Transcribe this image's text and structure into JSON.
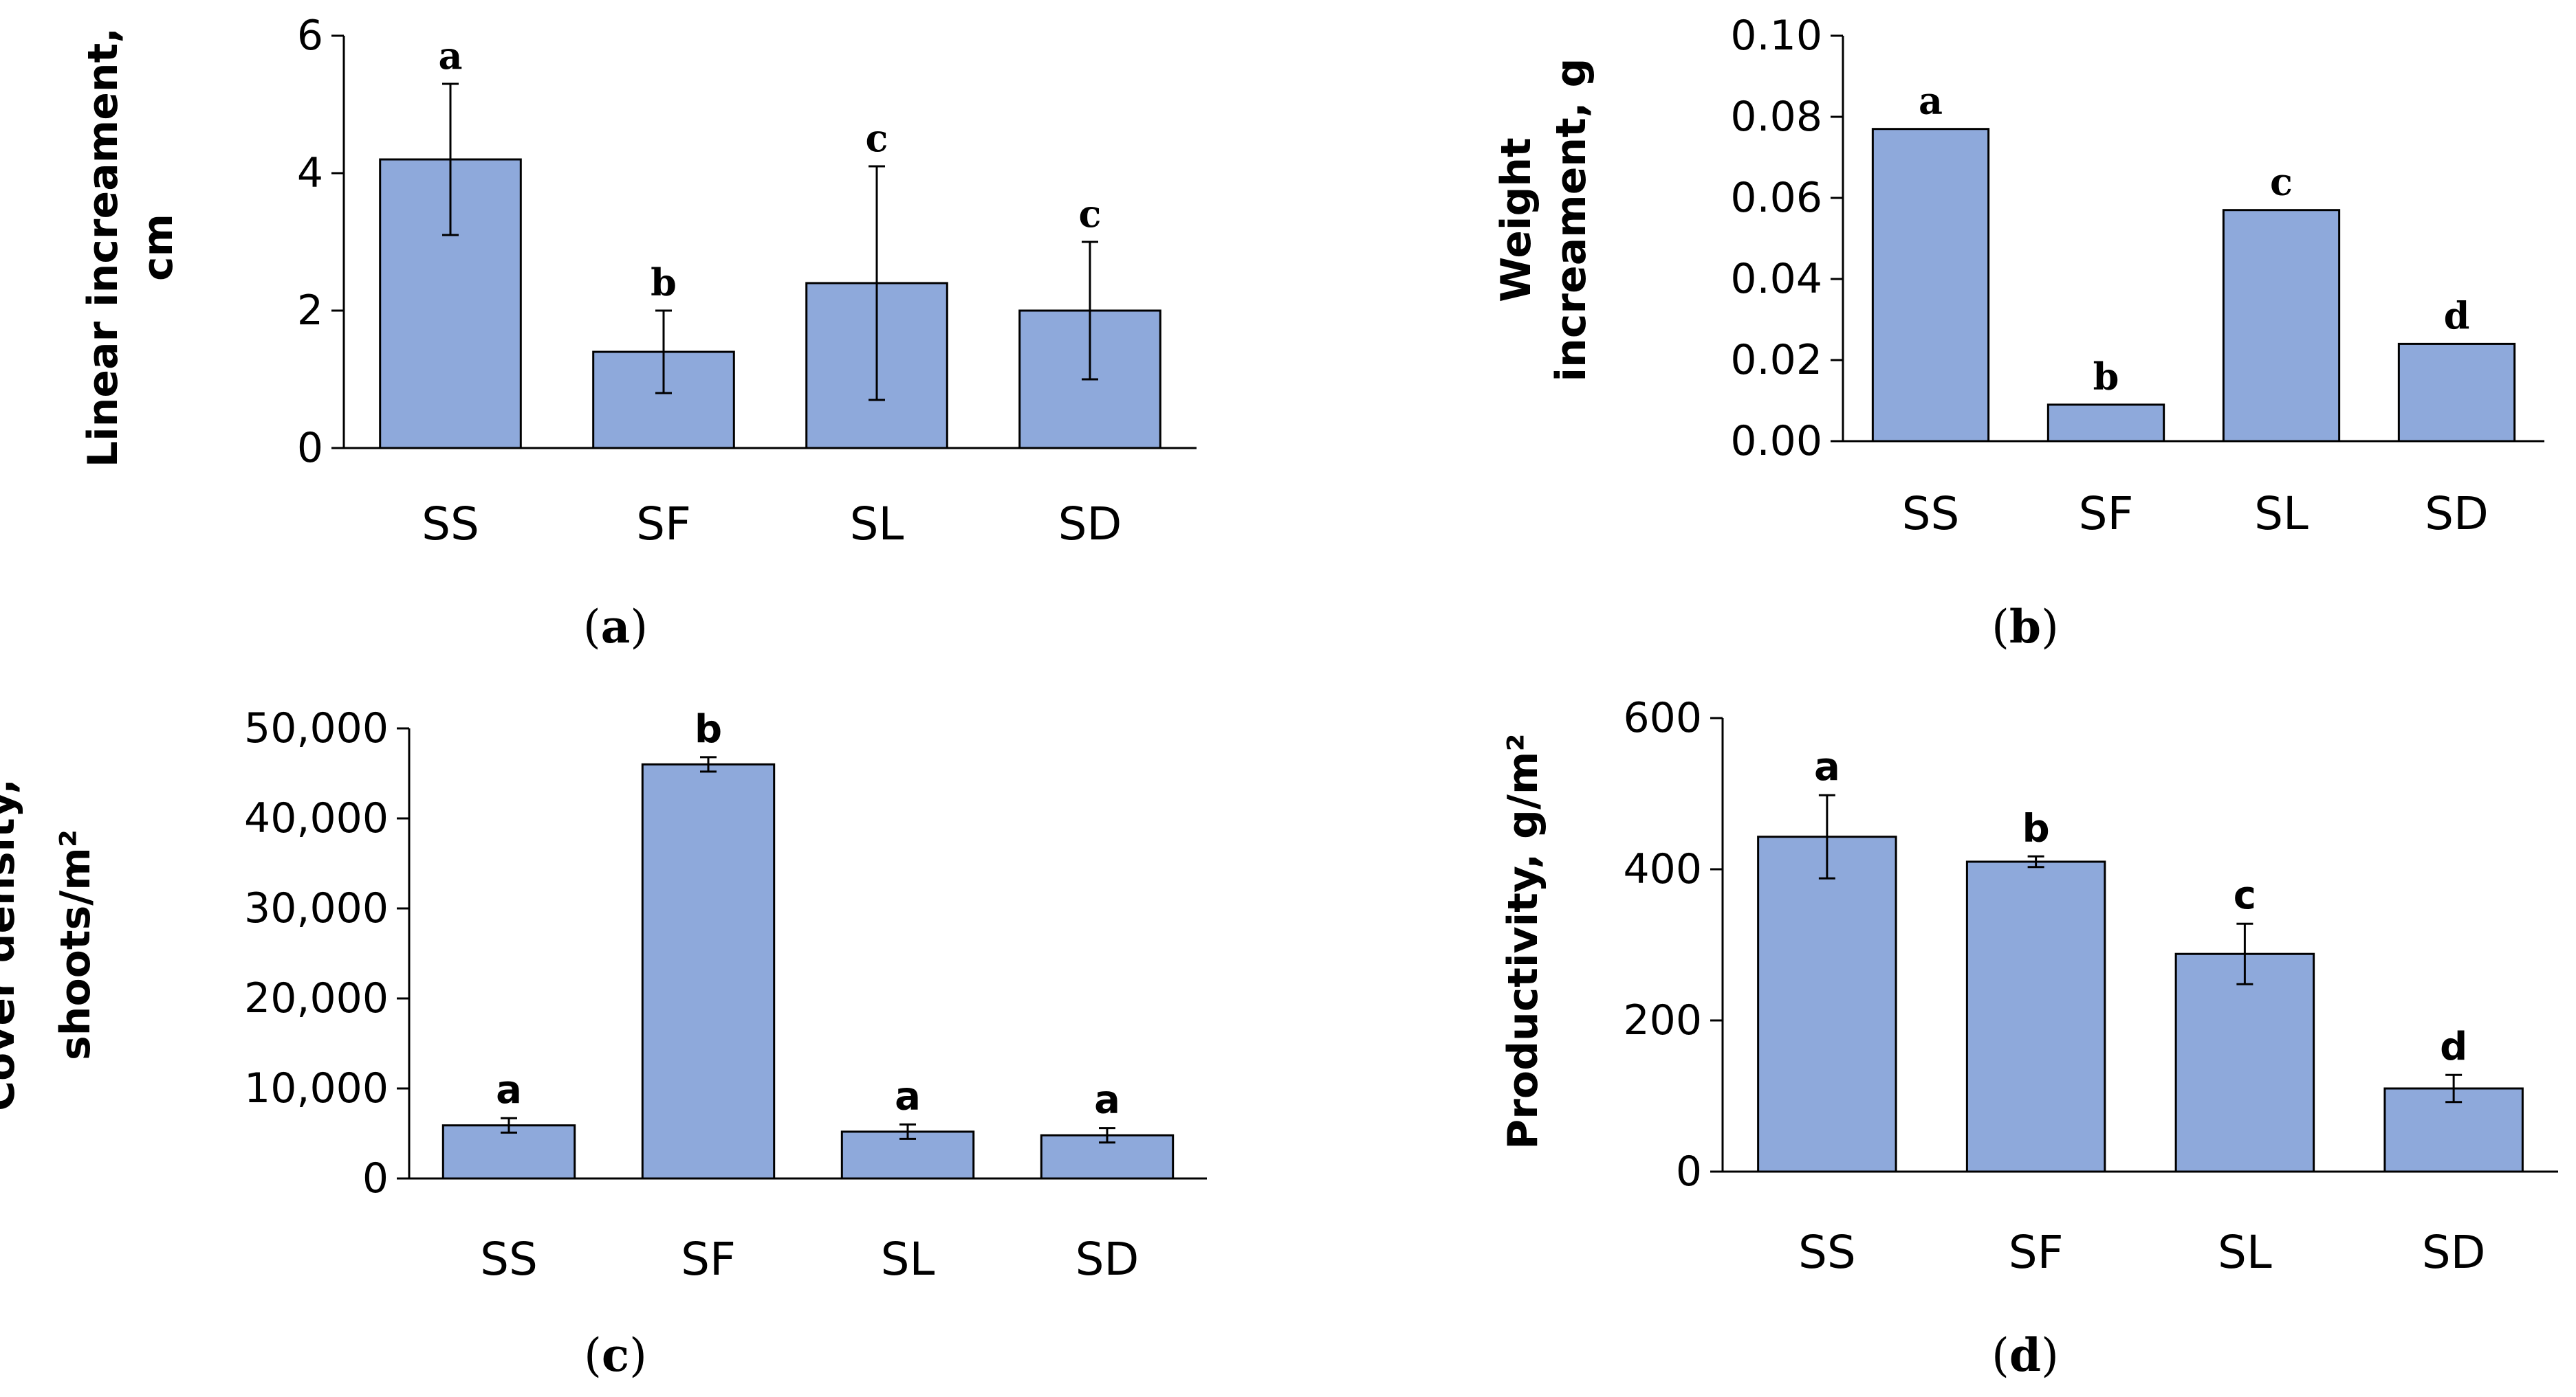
{
  "bar_color": "#8EA9DB",
  "chart_data": [
    {
      "id": "a",
      "type": "bar",
      "caption_letter": "a",
      "ylabel_lines": [
        "Linear increament,",
        "cm"
      ],
      "categories": [
        "SS",
        "SF",
        "SL",
        "SD"
      ],
      "values": [
        4.2,
        1.4,
        2.4,
        2.0
      ],
      "errors": [
        1.1,
        0.6,
        1.7,
        1.0
      ],
      "significance": [
        "a",
        "b",
        "c",
        "c"
      ],
      "ylim": [
        0,
        6
      ],
      "yticks": [
        0,
        2,
        4,
        6
      ],
      "ytick_labels": [
        "0",
        "2",
        "4",
        "6"
      ]
    },
    {
      "id": "b",
      "type": "bar",
      "caption_letter": "b",
      "ylabel_lines": [
        "Weight",
        "increament, g"
      ],
      "categories": [
        "SS",
        "SF",
        "SL",
        "SD"
      ],
      "values": [
        0.077,
        0.009,
        0.057,
        0.024
      ],
      "errors": [
        0,
        0,
        0,
        0
      ],
      "significance": [
        "a",
        "b",
        "c",
        "d"
      ],
      "ylim": [
        0,
        0.1
      ],
      "yticks": [
        0,
        0.02,
        0.04,
        0.06,
        0.08,
        0.1
      ],
      "ytick_labels": [
        "0.00",
        "0.02",
        "0.04",
        "0.06",
        "0.08",
        "0.10"
      ]
    },
    {
      "id": "c",
      "type": "bar",
      "caption_letter": "c",
      "ylabel_lines": [
        "Cover density,",
        "shoots/m²"
      ],
      "categories": [
        "SS",
        "SF",
        "SL",
        "SD"
      ],
      "values": [
        5900,
        46000,
        5200,
        4800
      ],
      "errors": [
        800,
        800,
        800,
        800
      ],
      "significance": [
        "a",
        "b",
        "a",
        "a"
      ],
      "ylim": [
        0,
        50000
      ],
      "yticks": [
        0,
        10000,
        20000,
        30000,
        40000,
        50000
      ],
      "ytick_labels": [
        "0",
        "10,000",
        "20,000",
        "30,000",
        "40,000",
        "50,000"
      ]
    },
    {
      "id": "d",
      "type": "bar",
      "caption_letter": "d",
      "ylabel_lines": [
        "Productivity, g/m²"
      ],
      "categories": [
        "SS",
        "SF",
        "SL",
        "SD"
      ],
      "values": [
        443,
        410,
        288,
        110
      ],
      "errors": [
        55,
        7,
        40,
        18
      ],
      "significance": [
        "a",
        "b",
        "c",
        "d"
      ],
      "ylim": [
        0,
        600
      ],
      "yticks": [
        0,
        200,
        400,
        600
      ],
      "ytick_labels": [
        "0",
        "200",
        "400",
        "600"
      ]
    }
  ]
}
